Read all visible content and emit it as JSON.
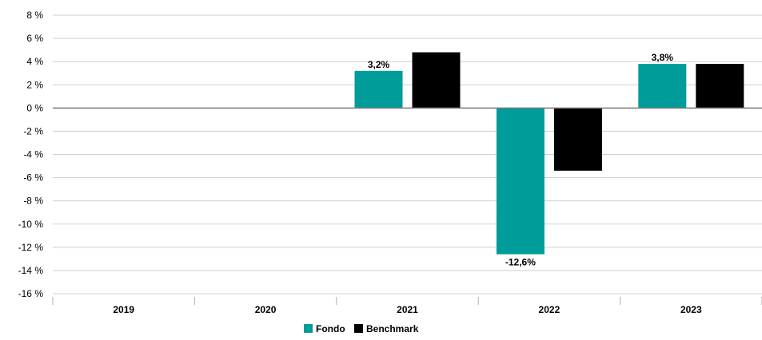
{
  "chart_data": {
    "type": "bar",
    "title": "",
    "xlabel": "",
    "ylabel": "",
    "categories": [
      "2019",
      "2020",
      "2021",
      "2022",
      "2023"
    ],
    "series": [
      {
        "name": "Fondo",
        "values": [
          null,
          null,
          3.2,
          -12.6,
          3.8
        ],
        "color": "#009c9a"
      },
      {
        "name": "Benchmark",
        "values": [
          null,
          null,
          4.8,
          -5.4,
          3.8
        ],
        "color": "#000000"
      }
    ],
    "data_labels": [
      {
        "series": 0,
        "category": 2,
        "text": "3,2%"
      },
      {
        "series": 0,
        "category": 3,
        "text": "-12,6%"
      },
      {
        "series": 0,
        "category": 4,
        "text": "3,8%"
      }
    ],
    "ylim": [
      -16,
      8
    ],
    "ytick_step": 2,
    "ytick_labels": [
      "8 %",
      "6 %",
      "4 %",
      "2 %",
      "0 %",
      "-2 %",
      "-4 %",
      "-6 %",
      "-8 %",
      "-10 %",
      "-12 %",
      "-14 %",
      "-16 %"
    ],
    "grid": true,
    "legend_position": "bottom-center"
  }
}
